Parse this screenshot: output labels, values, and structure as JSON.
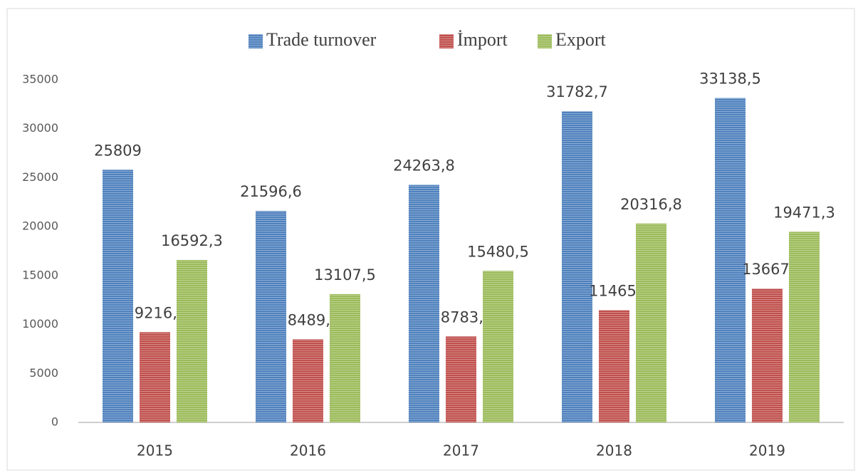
{
  "chart_data": {
    "type": "bar",
    "categories": [
      "2015",
      "2016",
      "2017",
      "2018",
      "2019"
    ],
    "series": [
      {
        "name": "Trade turnover",
        "color": "#4f81bd",
        "values": [
          25809,
          21596.6,
          24263.8,
          31782.7,
          33138.5
        ],
        "value_labels": [
          "25809",
          "21596,6",
          "24263,8",
          "31782,7",
          "33138,5"
        ]
      },
      {
        "name": "İmport",
        "color": "#c0504d",
        "values": [
          9216.7,
          8489.1,
          8783.3,
          11465.9,
          13667.2
        ],
        "value_labels": [
          "9216,7",
          "8489,1",
          "8783,3",
          "11465,9",
          "13667,2"
        ]
      },
      {
        "name": "Export",
        "color": "#9bbb59",
        "values": [
          16592.3,
          13107.5,
          15480.5,
          20316.8,
          19471.3
        ],
        "value_labels": [
          "16592,3",
          "13107,5",
          "15480,5",
          "20316,8",
          "19471,3"
        ]
      }
    ],
    "ylim": [
      0,
      35000
    ],
    "yticks": [
      0,
      5000,
      10000,
      15000,
      20000,
      25000,
      30000,
      35000
    ],
    "grid": false,
    "legend": "top"
  }
}
